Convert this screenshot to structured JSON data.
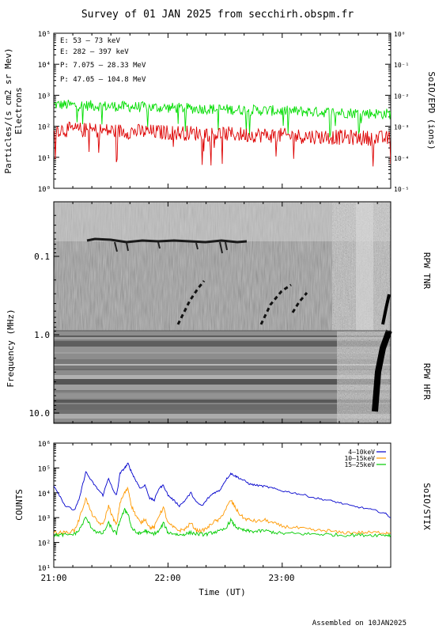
{
  "title": "Survey of 01 JAN 2025 from secchirh.obspm.fr",
  "footer": "Assembled on 10JAN2025",
  "chart_data": [
    {
      "type": "line",
      "panel": "particles",
      "ylabel": "Particles/(s cm2 sr Mev)",
      "ylabel2": "Electrons",
      "right_label": "SoIO/EPD (ions)",
      "yscale": "log",
      "ylim": [
        1,
        100000
      ],
      "ytick_labels": [
        "10⁰",
        "10¹",
        "10²",
        "10³",
        "10⁴",
        "10⁵"
      ],
      "y2lim": [
        1e-05,
        1
      ],
      "y2tick_labels": [
        "10⁻⁵",
        "10⁻⁴",
        "10⁻³",
        "10⁻²",
        "10⁻¹",
        "10⁰"
      ],
      "x_range_hours": [
        21.0,
        23.95
      ],
      "legend": [
        {
          "label": "E: 53 – 73 keV",
          "color": "#00dd00"
        },
        {
          "label": "E: 282 – 397 keV",
          "color": "#dd0000"
        },
        {
          "label": "P: 7.075 – 28.33 MeV",
          "color": "#000000"
        },
        {
          "label": "P: 47.05 – 104.8 MeV",
          "color": "#0000cc"
        }
      ],
      "series": [
        {
          "label": "E: 53 – 73 keV",
          "color": "#00dd00",
          "level_start": 500,
          "level_end": 250
        },
        {
          "label": "E: 282 – 397 keV",
          "color": "#dd0000",
          "level_start": 80,
          "level_end": 40
        }
      ]
    },
    {
      "type": "heatmap",
      "panel": "radio",
      "ylabel": "Frequency (MHz)",
      "ytick_labels": [
        "0.1",
        "1.0",
        "10.0"
      ],
      "right_labels": [
        "RPW TNR",
        "RPW HFR"
      ]
    },
    {
      "type": "line",
      "panel": "xray",
      "ylabel": "COUNTS",
      "right_label": "SoIO/STIX",
      "yscale": "log",
      "ylim": [
        10,
        1000000
      ],
      "ytick_labels": [
        "10¹",
        "10²",
        "10³",
        "10⁴",
        "10⁵",
        "10⁶"
      ],
      "xlabel": "Time (UT)",
      "xtick_labels": [
        "21:00",
        "22:00",
        "23:00"
      ],
      "legend": [
        {
          "label": "4–10keV",
          "color": "#0000cc"
        },
        {
          "label": "10–15keV",
          "color": "#ff9900"
        },
        {
          "label": "15–25keV",
          "color": "#00cc00"
        }
      ],
      "series": [
        {
          "label": "4–10keV",
          "color": "#0000cc",
          "x": [
            21.0,
            21.05,
            21.1,
            21.18,
            21.22,
            21.28,
            21.33,
            21.38,
            21.43,
            21.48,
            21.52,
            21.55,
            21.58,
            21.62,
            21.65,
            21.68,
            21.72,
            21.76,
            21.8,
            21.84,
            21.88,
            21.92,
            21.96,
            22.0,
            22.05,
            22.1,
            22.15,
            22.2,
            22.25,
            22.3,
            22.35,
            22.4,
            22.45,
            22.5,
            22.55,
            22.58,
            22.62,
            22.67,
            22.72,
            22.78,
            22.85,
            22.92,
            23.0,
            23.1,
            23.2,
            23.3,
            23.4,
            23.5,
            23.6,
            23.7,
            23.8,
            23.9,
            23.95
          ],
          "y": [
            20000,
            8000,
            3000,
            2000,
            5000,
            70000,
            30000,
            15000,
            8000,
            40000,
            12000,
            8000,
            60000,
            100000,
            150000,
            70000,
            30000,
            15000,
            20000,
            6000,
            5000,
            15000,
            20000,
            8000,
            5000,
            3000,
            5000,
            10000,
            4000,
            3000,
            6000,
            10000,
            12000,
            30000,
            60000,
            50000,
            40000,
            30000,
            22000,
            20000,
            18000,
            15000,
            12000,
            10000,
            8000,
            6000,
            5000,
            4000,
            3000,
            2500,
            2000,
            1500,
            1000
          ]
        },
        {
          "label": "10–15keV",
          "color": "#ff9900",
          "x": [
            21.0,
            21.05,
            21.1,
            21.18,
            21.22,
            21.28,
            21.33,
            21.38,
            21.43,
            21.48,
            21.52,
            21.55,
            21.58,
            21.62,
            21.65,
            21.68,
            21.72,
            21.76,
            21.8,
            21.84,
            21.88,
            21.92,
            21.96,
            22.0,
            22.05,
            22.1,
            22.15,
            22.2,
            22.25,
            22.3,
            22.35,
            22.4,
            22.45,
            22.5,
            22.55,
            22.58,
            22.62,
            22.67,
            22.72,
            22.78,
            22.85,
            22.92,
            23.0,
            23.1,
            23.2,
            23.3,
            23.4,
            23.5,
            23.6,
            23.7,
            23.8,
            23.9,
            23.95
          ],
          "y": [
            250,
            250,
            250,
            300,
            800,
            6000,
            1500,
            700,
            500,
            3000,
            900,
            500,
            4000,
            10000,
            15000,
            3000,
            1200,
            600,
            900,
            400,
            400,
            1200,
            2500,
            600,
            400,
            300,
            350,
            600,
            300,
            300,
            400,
            700,
            800,
            2000,
            5000,
            3000,
            1500,
            900,
            800,
            700,
            800,
            600,
            450,
            400,
            350,
            300,
            300,
            250,
            250,
            250,
            250,
            250,
            250
          ]
        },
        {
          "label": "15–25keV",
          "color": "#00cc00",
          "x": [
            21.0,
            21.05,
            21.1,
            21.18,
            21.22,
            21.28,
            21.33,
            21.38,
            21.43,
            21.48,
            21.52,
            21.55,
            21.58,
            21.62,
            21.65,
            21.68,
            21.72,
            21.76,
            21.8,
            21.84,
            21.88,
            21.92,
            21.96,
            22.0,
            22.05,
            22.1,
            22.15,
            22.2,
            22.25,
            22.3,
            22.35,
            22.4,
            22.45,
            22.5,
            22.55,
            22.58,
            22.62,
            22.67,
            22.72,
            22.78,
            22.85,
            22.92,
            23.0,
            23.1,
            23.2,
            23.3,
            23.4,
            23.5,
            23.6,
            23.7,
            23.8,
            23.9,
            23.95
          ],
          "y": [
            200,
            200,
            200,
            220,
            300,
            1000,
            400,
            250,
            230,
            600,
            300,
            230,
            800,
            2000,
            1500,
            400,
            250,
            230,
            300,
            230,
            230,
            280,
            600,
            250,
            230,
            200,
            220,
            250,
            220,
            210,
            220,
            260,
            280,
            350,
            800,
            500,
            350,
            300,
            280,
            280,
            300,
            260,
            230,
            230,
            220,
            220,
            210,
            200,
            200,
            200,
            200,
            200,
            200
          ]
        }
      ]
    }
  ]
}
